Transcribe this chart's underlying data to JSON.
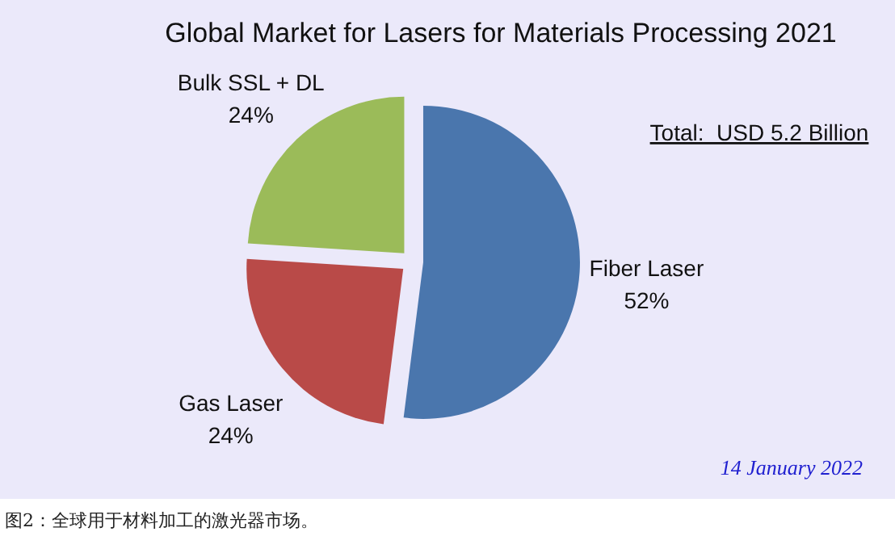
{
  "chart_data": {
    "type": "pie",
    "title": "Global Market for Lasers for Materials Processing 2021",
    "categories": [
      "Fiber Laser",
      "Gas Laser",
      "Bulk SSL + DL"
    ],
    "values": [
      52,
      24,
      24
    ],
    "colors": [
      "#4a76ad",
      "#b94a48",
      "#9bbb59"
    ],
    "value_labels": [
      "52%",
      "24%",
      "24%"
    ],
    "annotations": [
      "Total:  USD 5.2 Billion",
      "14 January 2022",
      "图2：全球用于材料加工的激光器市场。"
    ]
  }
}
